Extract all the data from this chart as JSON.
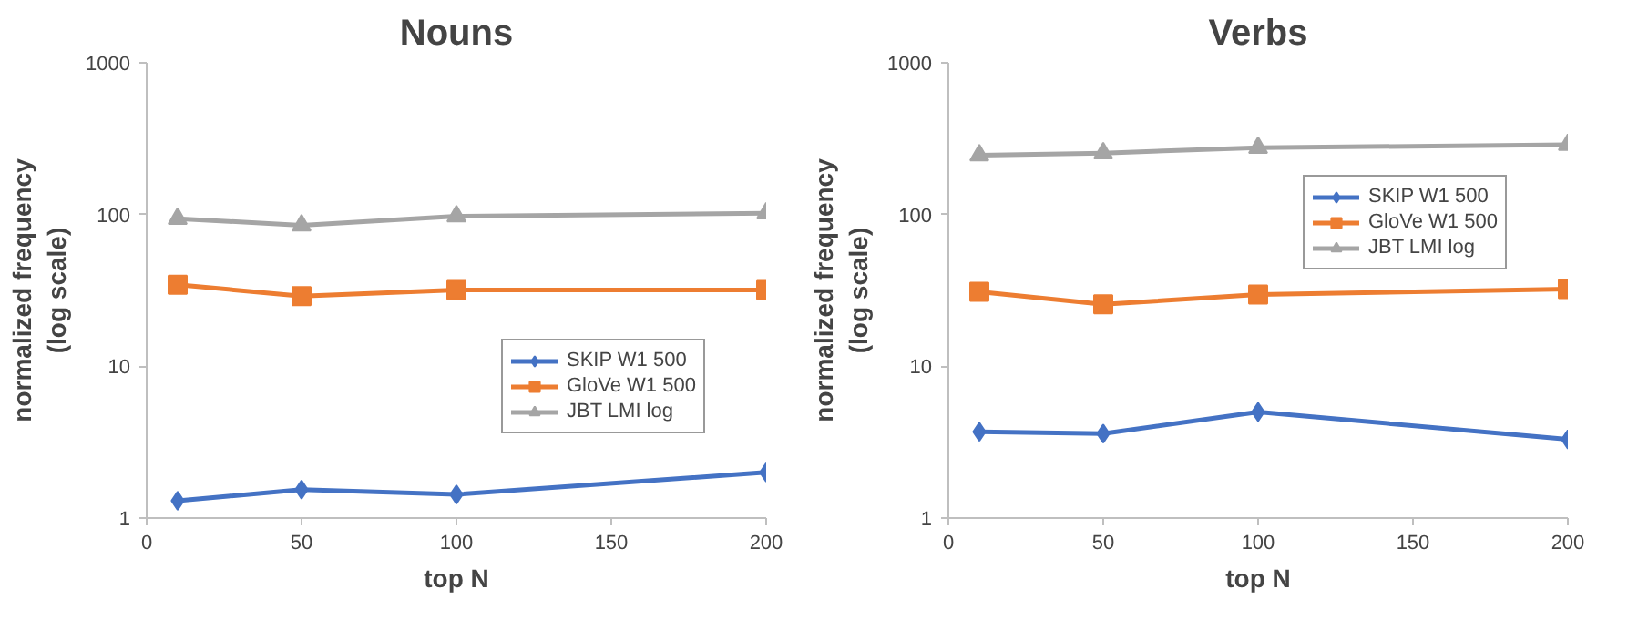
{
  "chart_data": [
    {
      "type": "line",
      "title": "Nouns",
      "xlabel": "top N",
      "ylabel": "normalized frequency\n(log scale)",
      "log": "y",
      "x": [
        10,
        50,
        100,
        200
      ],
      "xlim": [
        0,
        200
      ],
      "xticks": [
        0,
        50,
        100,
        150,
        200
      ],
      "ylim": [
        1,
        1000
      ],
      "yticks": [
        1,
        10,
        100,
        1000
      ],
      "grid": false,
      "legend": "right",
      "series": [
        {
          "name": "SKIP W1 500",
          "color": "#4472c4",
          "marker": "diamond",
          "values": [
            1.3,
            1.54,
            1.43,
            2.0
          ]
        },
        {
          "name": "GloVe W1 500",
          "color": "#ed7d31",
          "marker": "square",
          "values": [
            34.5,
            29,
            31.8,
            31.8
          ]
        },
        {
          "name": "JBT LMI log",
          "color": "#a5a5a5",
          "marker": "triangle",
          "values": [
            94,
            85,
            97.5,
            102
          ]
        }
      ]
    },
    {
      "type": "line",
      "title": "Verbs",
      "xlabel": "top N",
      "ylabel": "normalized frequency\n(log scale)",
      "log": "y",
      "x": [
        10,
        50,
        100,
        200
      ],
      "xlim": [
        0,
        200
      ],
      "xticks": [
        0,
        50,
        100,
        150,
        200
      ],
      "ylim": [
        1,
        1000
      ],
      "yticks": [
        1,
        10,
        100,
        1000
      ],
      "grid": false,
      "legend": "top right",
      "series": [
        {
          "name": "SKIP W1 500",
          "color": "#4472c4",
          "marker": "diamond",
          "values": [
            3.7,
            3.6,
            5.0,
            3.3
          ]
        },
        {
          "name": "GloVe W1 500",
          "color": "#ed7d31",
          "marker": "square",
          "values": [
            31,
            25.6,
            29.7,
            32.3
          ]
        },
        {
          "name": "JBT LMI log",
          "color": "#a5a5a5",
          "marker": "triangle",
          "values": [
            246,
            254,
            276,
            288
          ]
        }
      ]
    }
  ]
}
